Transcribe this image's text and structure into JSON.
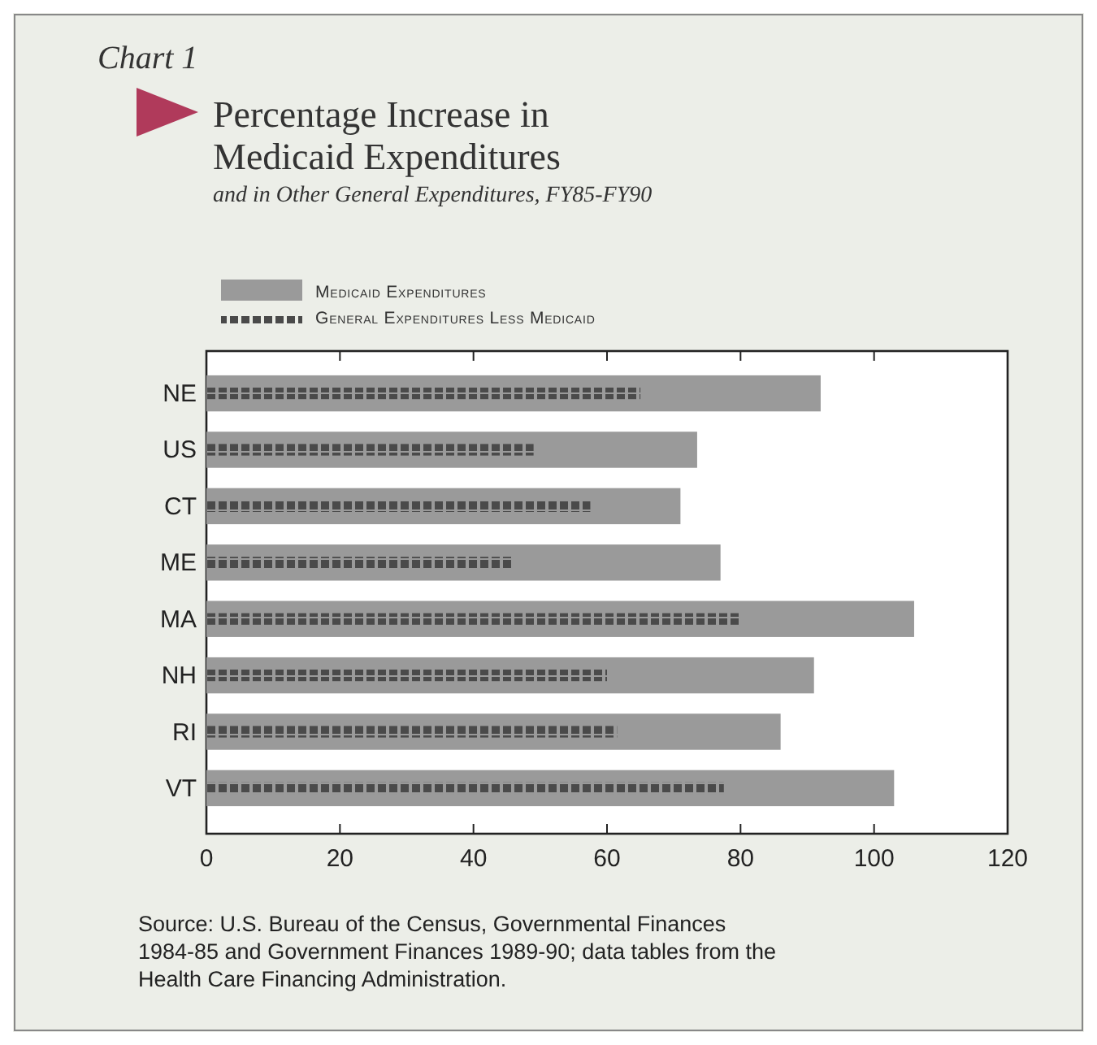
{
  "chart_data": {
    "type": "bar",
    "orientation": "horizontal",
    "title": "Percentage Increase in Medicaid Expenditures",
    "subtitle": "and in Other General Expenditures, FY85-FY90",
    "categories": [
      "NE",
      "US",
      "CT",
      "ME",
      "MA",
      "NH",
      "RI",
      "VT"
    ],
    "series": [
      {
        "name": "Medicaid Expenditures",
        "color": "#9a9a9a",
        "values": [
          92,
          73.5,
          71,
          77,
          106,
          91,
          86,
          103
        ]
      },
      {
        "name": "General Expenditures Less Medicaid",
        "color": "#4a4a4a",
        "values": [
          65,
          49,
          57.5,
          46,
          80,
          60,
          61.5,
          77.5
        ]
      }
    ],
    "xlim": [
      0,
      120
    ],
    "xticks": [
      0,
      20,
      40,
      60,
      80,
      100,
      120
    ],
    "legend": "top left",
    "grid": false,
    "annotations": [
      "Chart 1",
      "Source: U.S. Bureau of the Census, Governmental Finances 1984-85 and Government Finances 1989-90; data tables from the Health Care Financing Administration."
    ]
  }
}
